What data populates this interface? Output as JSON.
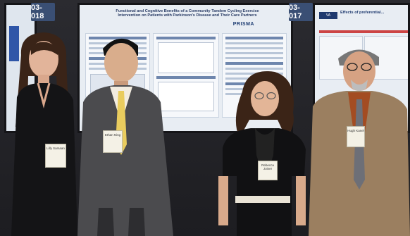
{
  "photo": {
    "board_left_number": "03-018",
    "board_right_number": "03-017",
    "poster_main_title": "Functional and Cognitive Benefits of a Community Tandem Cycling Exercise Intervention on Patients with Parkinson's Disease and Their Care Partners",
    "poster_main_logo": "PRISMA",
    "poster_right_title": "Effects of preferential...",
    "name_badges": [
      "Lilly Samaan",
      "Ethan Ning",
      "Rebecca Joiner",
      "Hugh Kanel"
    ]
  }
}
